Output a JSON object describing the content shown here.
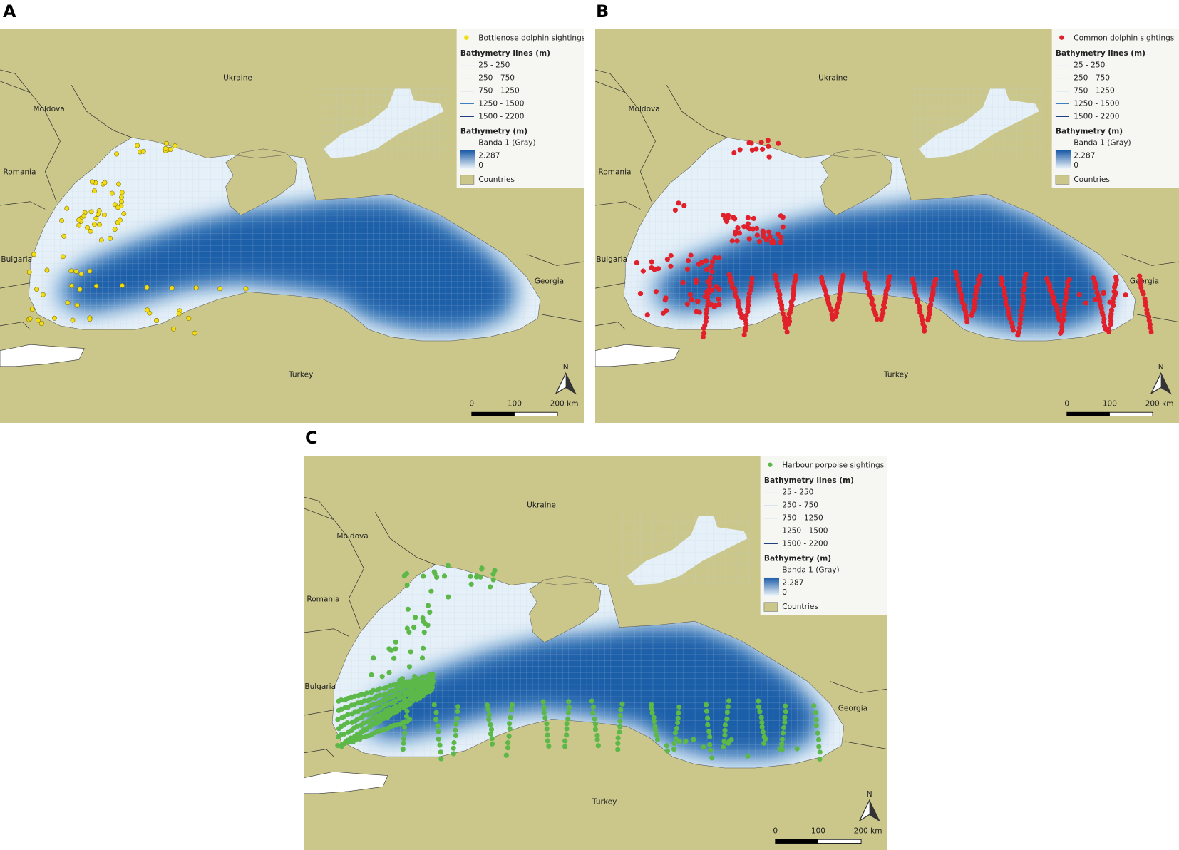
{
  "panels": [
    {
      "label": "A",
      "legend": {
        "sightings": "Bottlenose dolphin sightings",
        "lines_title": "Bathymetry lines (m)",
        "lines": [
          "25 - 250",
          "250 - 750",
          "750 - 1250",
          "1250 - 1500",
          "1500 - 2200"
        ],
        "raster_title": "Bathymetry (m)",
        "band": "Banda 1 (Gray)",
        "max": "2.287",
        "min": "0",
        "countries": "Countries"
      },
      "places": [
        "Ukraine",
        "Moldova",
        "Romania",
        "Bulgaria",
        "Georgia",
        "Turkey"
      ],
      "scale": [
        "0",
        "100",
        "200 km"
      ],
      "north": "N"
    },
    {
      "label": "B",
      "legend": {
        "sightings": "Common dolphin sightings",
        "lines_title": "Bathymetry lines (m)",
        "lines": [
          "25 - 250",
          "250 - 750",
          "750 - 1250",
          "1250 - 1500",
          "1500 - 2200"
        ],
        "raster_title": "Bathymetry (m)",
        "band": "Banda 1 (Gray)",
        "max": "2.287",
        "min": "0",
        "countries": "Countries"
      },
      "places": [
        "Ukraine",
        "Moldova",
        "Romania",
        "Bulgaria",
        "Georgia",
        "Turkey"
      ],
      "scale": [
        "0",
        "100",
        "200 km"
      ],
      "north": "N"
    },
    {
      "label": "C",
      "legend": {
        "sightings": "Harbour porpoise sightings",
        "lines_title": "Bathymetry lines (m)",
        "lines": [
          "25 - 250",
          "250 - 750",
          "750 - 1250",
          "1250 - 1500",
          "1500 - 2200"
        ],
        "raster_title": "Bathymetry (m)",
        "band": "Banda 1 (Gray)",
        "max": "2.287",
        "min": "0",
        "countries": "Countries"
      },
      "places": [
        "Ukraine",
        "Moldova",
        "Romania",
        "Bulgaria",
        "Georgia",
        "Turkey"
      ],
      "scale": [
        "0",
        "100",
        "200 km"
      ],
      "north": "N"
    }
  ]
}
